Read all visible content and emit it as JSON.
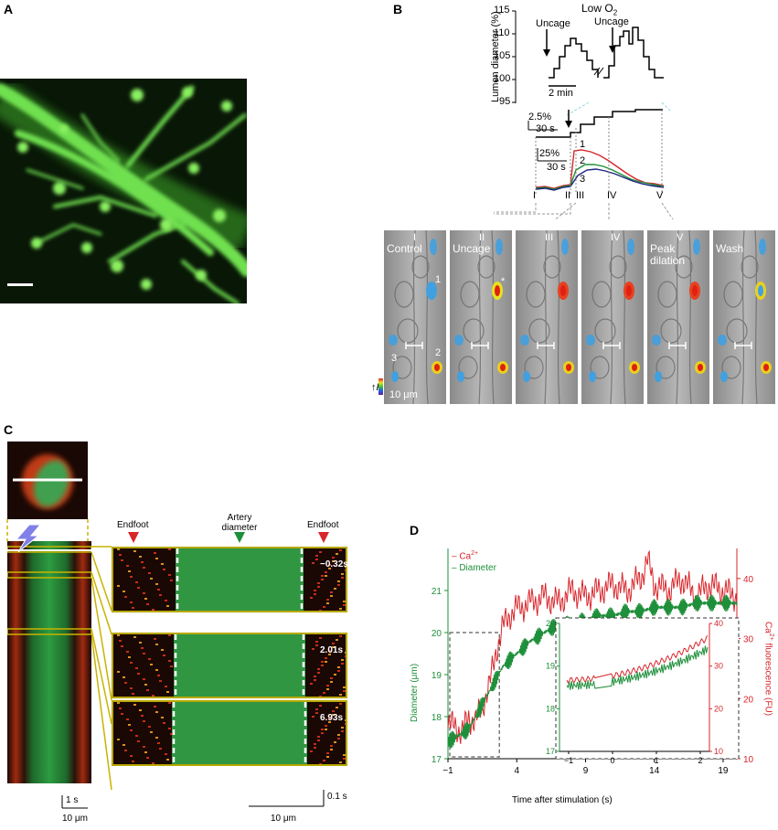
{
  "panels": {
    "a": "A",
    "b": "B",
    "c": "C",
    "d": "D"
  },
  "b": {
    "top_title": "Low O",
    "top_title_sub": "2",
    "uncage_labels": [
      "Uncage",
      "Uncage"
    ],
    "ylabel": "Lumen diameter (%)",
    "yticks": [
      "115",
      "110",
      "105",
      "100",
      "95"
    ],
    "time_scale": "2 min",
    "mid_scale_pct": "2.5%",
    "mid_scale_time": "30 s",
    "fl_scale_pct": "25%",
    "fl_scale_time": "30 s",
    "trace_ids": [
      "1",
      "2",
      "3"
    ],
    "roman": [
      "I",
      "II",
      "III",
      "IV",
      "V"
    ],
    "frames": [
      {
        "label": "Control",
        "roman": "I"
      },
      {
        "label": "Uncage",
        "roman": "II"
      },
      {
        "label": "",
        "roman": "III"
      },
      {
        "label": "",
        "roman": "IV"
      },
      {
        "label": "Peak dilation",
        "roman": "V"
      },
      {
        "label": "Wash",
        "roman": ""
      }
    ],
    "cell_ids": [
      "1",
      "2",
      "3"
    ],
    "asterisk": "*",
    "f_label": "F",
    "scalebar": "10 μm"
  },
  "c": {
    "endfoot_left": "Endfoot",
    "endfoot_right": "Endfoot",
    "artery": "Artery diameter",
    "times": [
      "−0.32s",
      "2.01s",
      "6.93s"
    ],
    "scale_time_left": "1 s",
    "scale_len_left": "10 μm",
    "scale_time_right": "0.1 s",
    "scale_len_right": "10 μm"
  },
  "d": {
    "legend_ca": "– Ca",
    "legend_ca_sup": "2+",
    "legend_diam": "– Diameter",
    "ylabel_left": "Diameter (μm)",
    "ylabel_right": "Ca",
    "ylabel_right_sup": "2+",
    "ylabel_right_tail": " fluorescence (FU)",
    "xlabel": "Time after stimulation (s)",
    "inset_yleft": [
      "20",
      "19",
      "18",
      "17"
    ],
    "inset_yright": [
      "40",
      "30",
      "20",
      "10"
    ],
    "inset_x": [
      "−1",
      "0",
      "1",
      "2"
    ],
    "colors": {
      "ca": "#d8262b",
      "diam": "#1e8f3a"
    }
  },
  "chart_data": {
    "type": "line",
    "title": "",
    "xlabel": "Time after stimulation (s)",
    "ylabel": "Diameter (μm)",
    "y2label": "Ca2+ fluorescence (FU)",
    "xlim": [
      -1,
      20
    ],
    "ylim": [
      17,
      22
    ],
    "y2lim": [
      10,
      45
    ],
    "xticks": [
      -1,
      4,
      9,
      14,
      19
    ],
    "yticks": [
      17,
      18,
      19,
      20,
      21
    ],
    "y2ticks": [
      10,
      20,
      30,
      40
    ],
    "series": [
      {
        "name": "Ca2+",
        "axis": "right",
        "x": [
          -1,
          -0.5,
          0,
          0.5,
          1,
          1.5,
          2,
          2.5,
          3,
          3.5,
          4,
          5,
          6,
          7,
          8,
          9,
          10,
          11,
          12,
          13,
          13.5,
          14,
          15,
          16,
          17,
          18,
          19,
          20
        ],
        "y": [
          15,
          16,
          14,
          17,
          16,
          19,
          22,
          28,
          32,
          34,
          35,
          36,
          37,
          36,
          38,
          37,
          38,
          39,
          38,
          40,
          43,
          39,
          38,
          40,
          37,
          39,
          38,
          37
        ]
      },
      {
        "name": "Diameter",
        "axis": "left",
        "x": [
          -1,
          -0.5,
          0,
          0.5,
          1,
          1.5,
          2,
          2.5,
          3,
          4,
          5,
          6,
          7,
          8,
          9,
          10,
          11,
          12,
          13,
          14,
          15,
          16,
          17,
          18,
          19,
          20
        ],
        "y": [
          17.4,
          17.5,
          17.6,
          17.7,
          18.0,
          18.3,
          18.6,
          18.9,
          19.2,
          19.5,
          19.8,
          20.0,
          20.2,
          20.2,
          20.3,
          20.4,
          20.4,
          20.5,
          20.5,
          20.6,
          20.6,
          20.6,
          20.7,
          20.7,
          20.7,
          20.7
        ]
      }
    ]
  }
}
